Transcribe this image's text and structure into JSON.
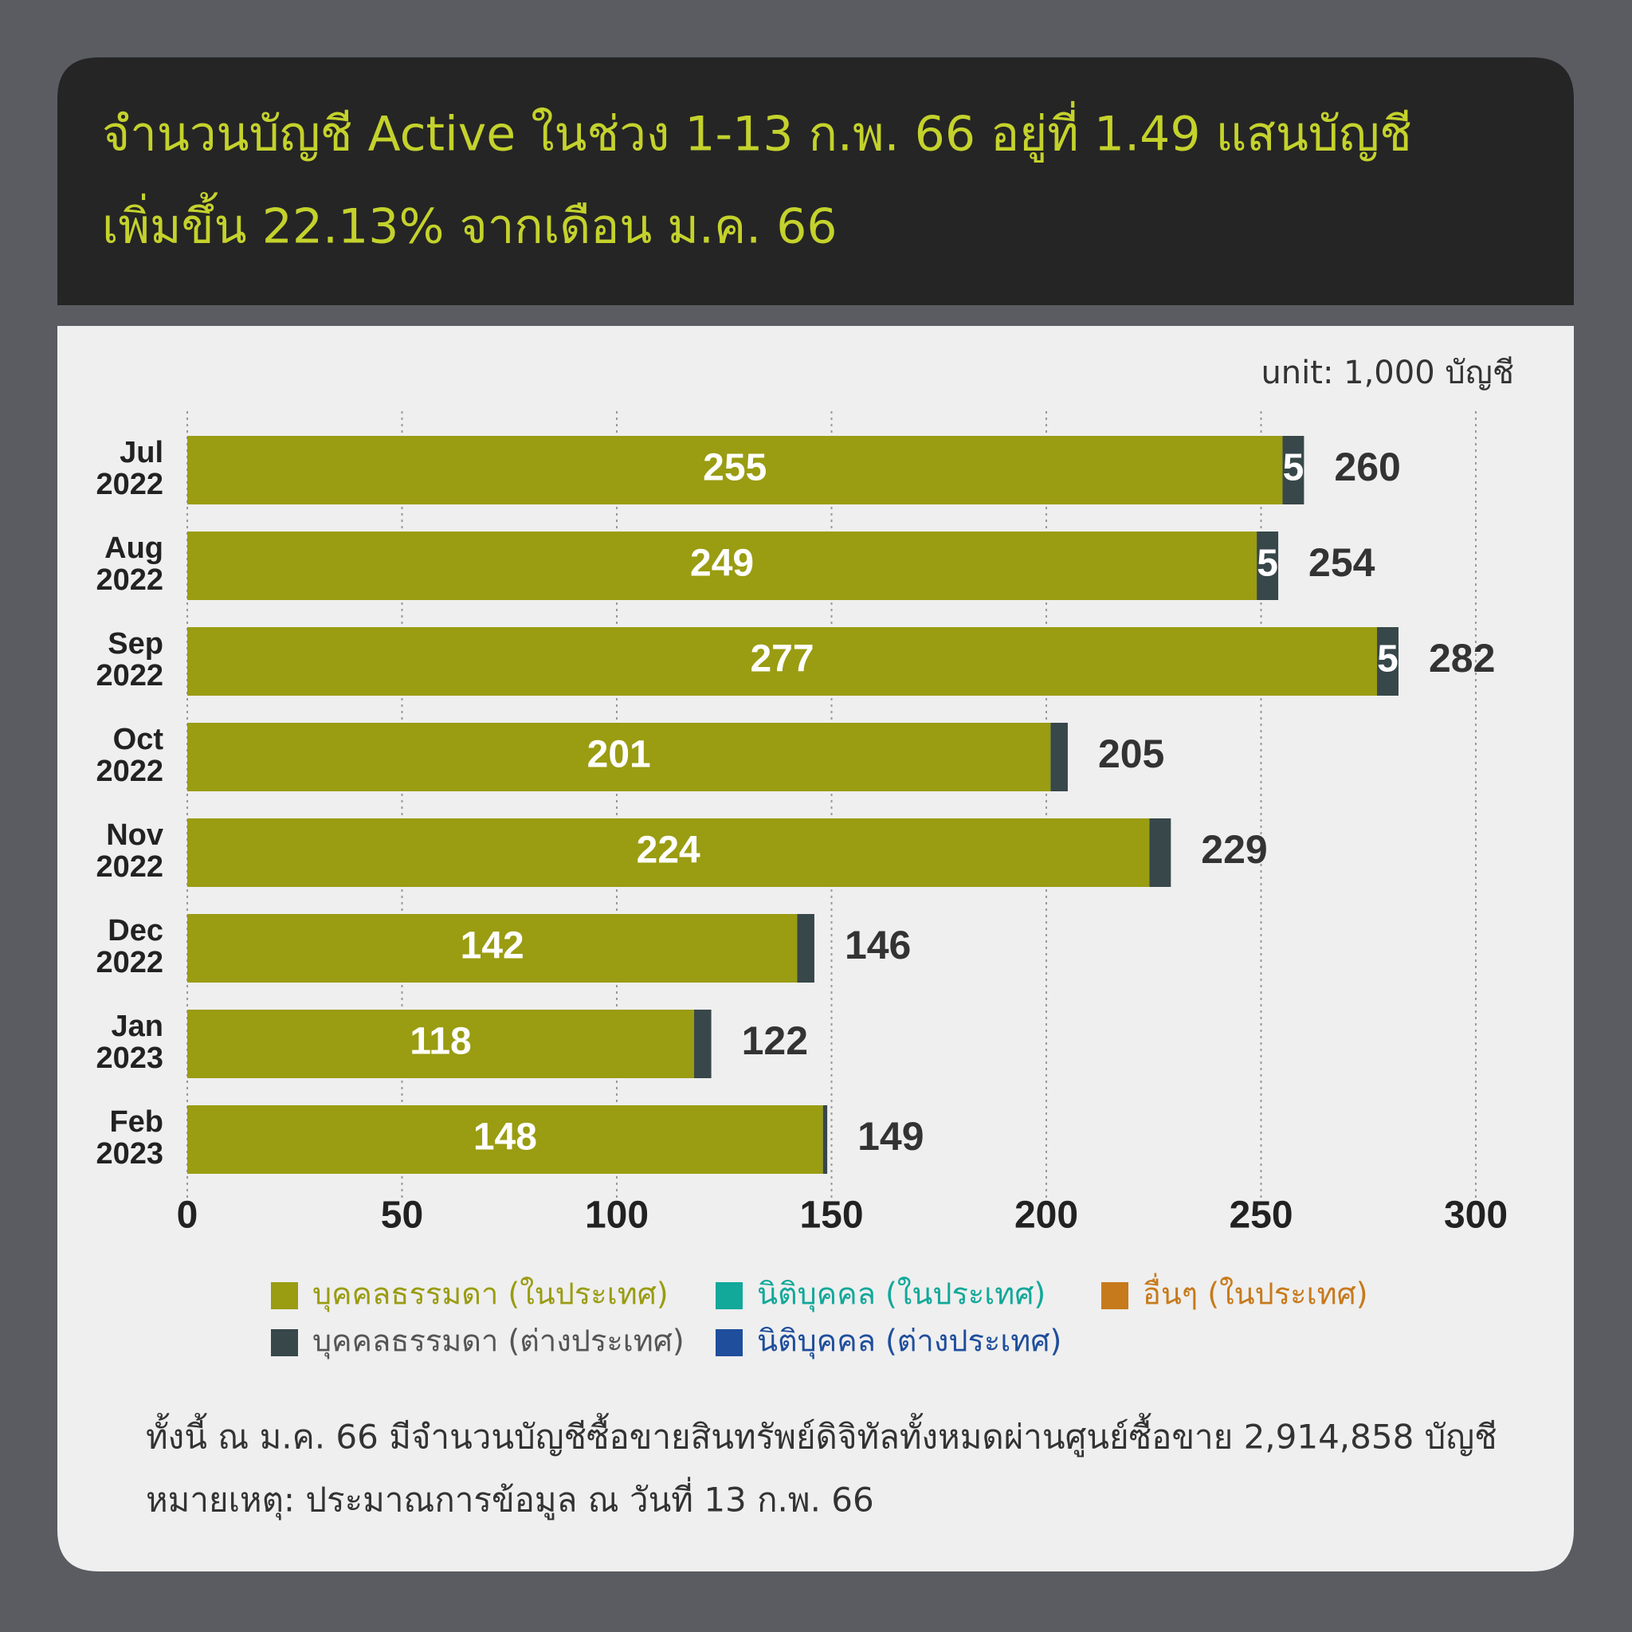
{
  "chart_data": {
    "type": "stacked_bar_horizontal",
    "title": [
      "จำนวนบัญชี Active ในช่วง 1-13 ก.พ. 66 อยู่ที่ 1.49 แสนบัญชี",
      "เพิ่มขึ้น 22.13% จากเดือน ม.ค. 66"
    ],
    "unit_label": "unit: 1,000 บัญชี",
    "categories": [
      "Jul 2022",
      "Aug 2022",
      "Sep 2022",
      "Oct 2022",
      "Nov 2022",
      "Dec 2022",
      "Jan 2023",
      "Feb 2023"
    ],
    "series": [
      {
        "name": "บุคคลธรรมดา (ในประเทศ)",
        "color": "#9a9c12",
        "values": [
          255,
          249,
          277,
          201,
          224,
          142,
          118,
          148
        ]
      },
      {
        "name": "นิติบุคคล (ในประเทศ)",
        "color": "#12a89a",
        "values": [
          0,
          0,
          0,
          0,
          0,
          0,
          0,
          0
        ]
      },
      {
        "name": "อื่นๆ (ในประเทศ)",
        "color": "#c77a1c",
        "values": [
          0,
          0,
          0,
          0,
          0,
          0,
          0,
          0
        ]
      },
      {
        "name": "บุคคลธรรมดา (ต่างประเทศ)",
        "color": "#37474a",
        "values": [
          5,
          5,
          5,
          4,
          5,
          4,
          4,
          1
        ],
        "value_labels": [
          5,
          5,
          5,
          null,
          null,
          null,
          null,
          null
        ]
      },
      {
        "name": "นิติบุคคล (ต่างประเทศ)",
        "color": "#1f4e9c",
        "values": [
          0,
          0,
          0,
          0,
          0,
          0,
          0,
          0
        ]
      }
    ],
    "legend_text_colors": [
      "#9a9c12",
      "#12a89a",
      "#c77a1c",
      "#555555",
      "#1f4e9c"
    ],
    "totals": [
      260,
      254,
      282,
      205,
      229,
      146,
      122,
      149
    ],
    "xlim": [
      0,
      300
    ],
    "xticks": [
      0,
      50,
      100,
      150,
      200,
      250,
      300
    ],
    "grid": true,
    "notes": [
      "ทั้งนี้ ณ ม.ค. 66 มีจำนวนบัญชีซื้อขายสินทรัพย์ดิจิทัลทั้งหมดผ่านศูนย์ซื้อขาย 2,914,858 บัญชี",
      "หมายเหตุ: ประมาณการข้อมูล ณ วันที่ 13 ก.พ. 66"
    ]
  }
}
